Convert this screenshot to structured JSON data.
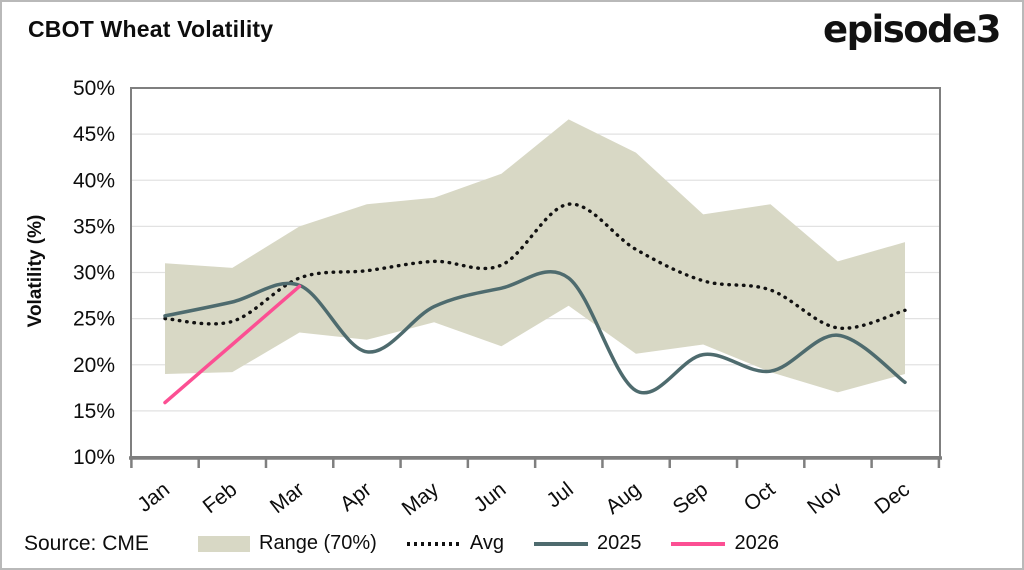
{
  "header": {
    "title": "CBOT Wheat Volatility",
    "logo": "episode3"
  },
  "footer": {
    "source": "Source: CME"
  },
  "chart_data": {
    "type": "line",
    "title": "CBOT Wheat Volatility",
    "xlabel": "",
    "ylabel": "Volatility (%)",
    "ylim": [
      10,
      50
    ],
    "grid": true,
    "legend_position": "bottom",
    "yticks": [
      {
        "value": 50,
        "label": "50%"
      },
      {
        "value": 45,
        "label": "45%"
      },
      {
        "value": 40,
        "label": "40%"
      },
      {
        "value": 35,
        "label": "35%"
      },
      {
        "value": 30,
        "label": "30%"
      },
      {
        "value": 25,
        "label": "25%"
      },
      {
        "value": 20,
        "label": "20%"
      },
      {
        "value": 15,
        "label": "15%"
      },
      {
        "value": 10,
        "label": "10%"
      }
    ],
    "categories": [
      "Jan",
      "Feb",
      "Mar",
      "Apr",
      "May",
      "Jun",
      "Jul",
      "Aug",
      "Sep",
      "Oct",
      "Nov",
      "Dec"
    ],
    "series": [
      {
        "name": "Range (70%)",
        "type": "band",
        "color": "#d8d8c5",
        "top": [
          31.0,
          30.5,
          35.0,
          37.4,
          38.1,
          40.7,
          46.6,
          43.0,
          36.3,
          37.4,
          31.2,
          33.3
        ],
        "bottom": [
          19.0,
          19.2,
          23.5,
          22.7,
          24.6,
          22.0,
          26.4,
          21.2,
          22.2,
          19.2,
          17.0,
          19.0
        ]
      },
      {
        "name": "Avg",
        "type": "dotted",
        "color": "#111111",
        "values": [
          25.0,
          24.7,
          29.4,
          30.2,
          31.2,
          30.8,
          37.4,
          32.5,
          29.1,
          28.1,
          24.0,
          25.9
        ]
      },
      {
        "name": "2025",
        "type": "line",
        "color": "#4e6b6e",
        "values": [
          25.3,
          26.8,
          28.6,
          21.4,
          26.3,
          28.3,
          29.4,
          17.2,
          21.1,
          19.3,
          23.2,
          18.1
        ]
      },
      {
        "name": "2026",
        "type": "line",
        "color": "#fc4f93",
        "values": [
          15.9,
          22.2,
          28.5,
          null,
          null,
          null,
          null,
          null,
          null,
          null,
          null,
          null
        ]
      }
    ],
    "axis_color": "#7f7f7f",
    "grid_color": "#e2e2e2"
  }
}
